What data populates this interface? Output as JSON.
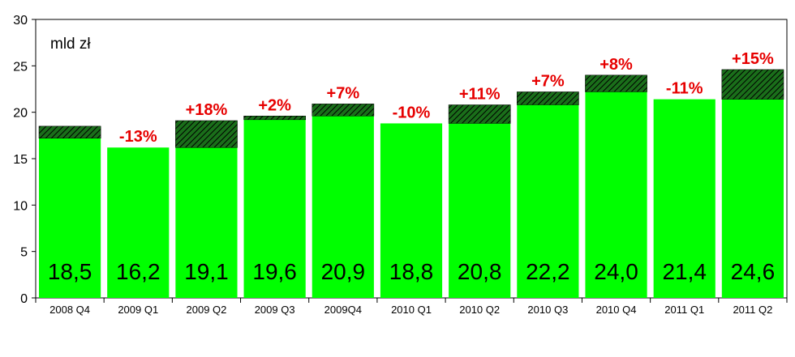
{
  "chart_data": {
    "type": "bar",
    "unit_label": "mld zł",
    "categories": [
      "2008 Q4",
      "2009 Q1",
      "2009 Q2",
      "2009 Q3",
      "2009Q4",
      "2010 Q1",
      "2010 Q2",
      "2010 Q3",
      "2010 Q4",
      "2011 Q1",
      "2011 Q2"
    ],
    "values": [
      18.5,
      16.2,
      19.1,
      19.6,
      20.9,
      18.8,
      20.8,
      22.2,
      24.0,
      21.4,
      24.6
    ],
    "value_labels": [
      "18,5",
      "16,2",
      "19,1",
      "19,6",
      "20,9",
      "18,8",
      "20,8",
      "22,2",
      "24,0",
      "21,4",
      "24,6"
    ],
    "change_labels": [
      "",
      "-13%",
      "+18%",
      "+2%",
      "+7%",
      "-10%",
      "+11%",
      "+7%",
      "+8%",
      "-11%",
      "+15%"
    ],
    "hatched_base_values": [
      17.2,
      16.2,
      16.2,
      19.2,
      19.6,
      18.8,
      18.8,
      20.8,
      22.2,
      21.4,
      21.4
    ],
    "ylim": [
      0,
      30
    ],
    "yticks": [
      0,
      5,
      10,
      15,
      20,
      25,
      30
    ],
    "grid": false,
    "legend": "none",
    "colors": {
      "bar": "#00ff00",
      "hatch_bg": "#1a6e1a",
      "hatch_line": "#000000",
      "change_text": "#e60000"
    }
  }
}
